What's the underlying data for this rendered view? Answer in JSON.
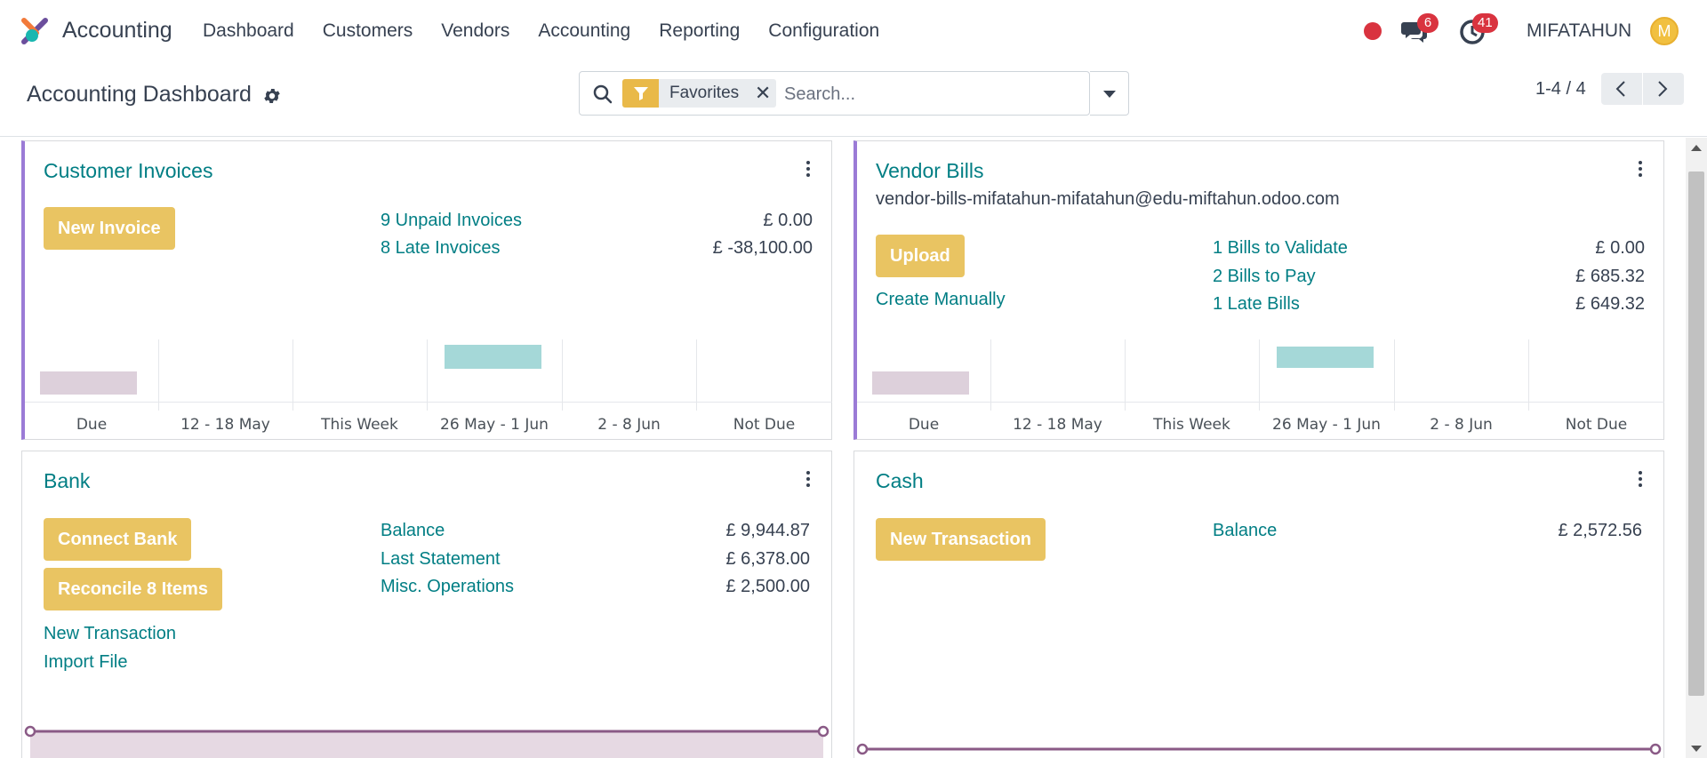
{
  "app": {
    "name": "Accounting"
  },
  "menu": [
    "Dashboard",
    "Customers",
    "Vendors",
    "Accounting",
    "Reporting",
    "Configuration"
  ],
  "systray": {
    "messages_count": "6",
    "activities_count": "41",
    "user_name": "MIFATAHUN",
    "avatar_letter": "M",
    "record_color": "#d9333f"
  },
  "control_panel": {
    "title": "Accounting Dashboard",
    "facet": "Favorites",
    "search_placeholder": "Search...",
    "pager": "1-4 / 4"
  },
  "colors": {
    "accent": "#017e84",
    "button": "#e9c462",
    "card_border_left": "#9b7bd6",
    "bar_past": "#ddd0db",
    "bar_future": "#a5d8d8"
  },
  "cards": {
    "customer_invoices": {
      "title": "Customer Invoices",
      "button": "New Invoice",
      "rows": [
        {
          "label": "9 Unpaid Invoices",
          "amount": "£ 0.00"
        },
        {
          "label": "8 Late Invoices",
          "amount": "£ -38,100.00"
        }
      ],
      "chart_labels": [
        "Due",
        "12 - 18 May",
        "This Week",
        "26 May - 1 Jun",
        "2 - 8 Jun",
        "Not Due"
      ]
    },
    "vendor_bills": {
      "title": "Vendor Bills",
      "email": "vendor-bills-mifatahun-mifatahun@edu-miftahun.odoo.com",
      "button": "Upload",
      "link": "Create Manually",
      "rows": [
        {
          "label": "1 Bills to Validate",
          "amount": "£ 0.00"
        },
        {
          "label": "2 Bills to Pay",
          "amount": "£ 685.32"
        },
        {
          "label": "1 Late Bills",
          "amount": "£ 649.32"
        }
      ],
      "chart_labels": [
        "Due",
        "12 - 18 May",
        "This Week",
        "26 May - 1 Jun",
        "2 - 8 Jun",
        "Not Due"
      ]
    },
    "bank": {
      "title": "Bank",
      "buttons": [
        "Connect Bank",
        "Reconcile 8 Items"
      ],
      "links": [
        "New Transaction",
        "Import File"
      ],
      "rows": [
        {
          "label": "Balance",
          "amount": "£ 9,944.87"
        },
        {
          "label": "Last Statement",
          "amount": "£ 6,378.00"
        },
        {
          "label": "Misc. Operations",
          "amount": "£ 2,500.00"
        }
      ]
    },
    "cash": {
      "title": "Cash",
      "button": "New Transaction",
      "rows": [
        {
          "label": "Balance",
          "amount": "£ 2,572.56"
        }
      ]
    }
  }
}
